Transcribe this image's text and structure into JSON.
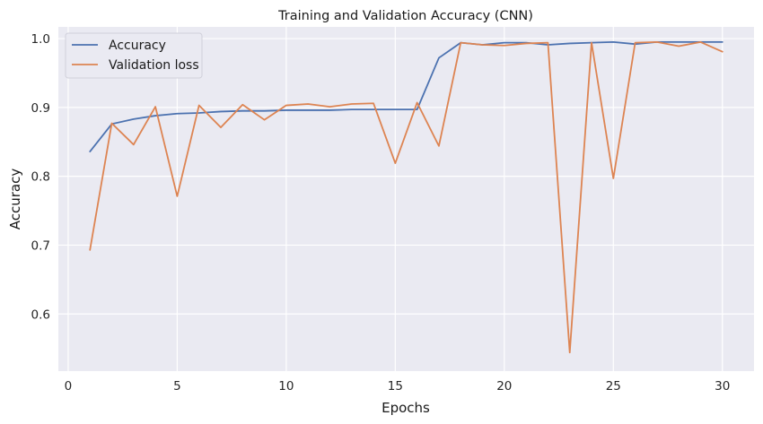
{
  "chart_data": {
    "type": "line",
    "title": "Training and Validation Accuracy (CNN)",
    "xlabel": "Epochs",
    "ylabel": "Accuracy",
    "xlim": [
      -0.45,
      31.45
    ],
    "ylim": [
      0.517,
      1.017
    ],
    "xticks": [
      0,
      5,
      10,
      15,
      20,
      25,
      30
    ],
    "yticks": [
      0.6,
      0.7,
      0.8,
      0.9,
      1.0
    ],
    "ytick_labels": [
      "0.6",
      "0.7",
      "0.8",
      "0.9",
      "1.0"
    ],
    "grid": true,
    "legend": "top-left",
    "x": [
      1,
      2,
      3,
      4,
      5,
      6,
      7,
      8,
      9,
      10,
      11,
      12,
      13,
      14,
      15,
      16,
      17,
      18,
      19,
      20,
      21,
      22,
      23,
      24,
      25,
      26,
      27,
      28,
      29,
      30
    ],
    "series": [
      {
        "name": "Accuracy",
        "color": "#4c72b0",
        "values": [
          0.836,
          0.876,
          0.883,
          0.888,
          0.891,
          0.892,
          0.894,
          0.895,
          0.895,
          0.896,
          0.896,
          0.896,
          0.897,
          0.897,
          0.897,
          0.897,
          0.972,
          0.994,
          0.991,
          0.994,
          0.994,
          0.991,
          0.993,
          0.994,
          0.995,
          0.992,
          0.995,
          0.995,
          0.995,
          0.995
        ]
      },
      {
        "name": "Validation loss",
        "color": "#dd8452",
        "values": [
          0.693,
          0.877,
          0.846,
          0.901,
          0.771,
          0.903,
          0.871,
          0.904,
          0.882,
          0.903,
          0.905,
          0.901,
          0.905,
          0.906,
          0.819,
          0.907,
          0.844,
          0.994,
          0.991,
          0.99,
          0.993,
          0.994,
          0.544,
          0.994,
          0.797,
          0.994,
          0.995,
          0.989,
          0.995,
          0.981
        ]
      }
    ]
  }
}
